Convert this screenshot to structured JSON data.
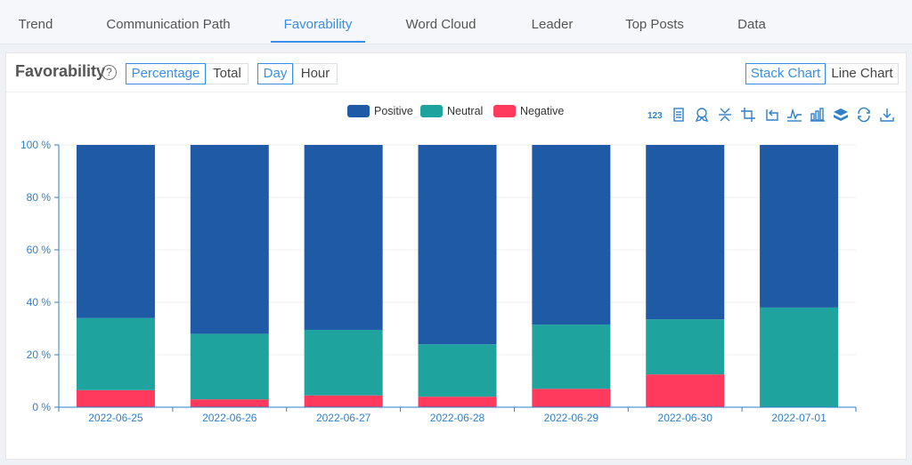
{
  "tabs": [
    {
      "label": "Trend",
      "active": false
    },
    {
      "label": "Communication Path",
      "active": false
    },
    {
      "label": "Favorability",
      "active": true
    },
    {
      "label": "Word Cloud",
      "active": false
    },
    {
      "label": "Leader",
      "active": false
    },
    {
      "label": "Top Posts",
      "active": false
    },
    {
      "label": "Data",
      "active": false
    }
  ],
  "panel": {
    "title": "Favorability",
    "help_icon": "question-circle-icon",
    "mode_buttons": [
      {
        "label": "Percentage",
        "active": true
      },
      {
        "label": "Total",
        "active": false
      }
    ],
    "granularity_buttons": [
      {
        "label": "Day",
        "active": true
      },
      {
        "label": "Hour",
        "active": false
      }
    ],
    "view_buttons": [
      {
        "label": "Stack Chart",
        "active": true
      },
      {
        "label": "Line Chart",
        "active": false
      }
    ]
  },
  "toolbox": [
    "data-labels-icon",
    "data-view-icon",
    "award-icon",
    "collapse-icon",
    "crop-icon",
    "rotate-icon",
    "line-chart-icon",
    "bar-chart-icon",
    "stack-icon",
    "refresh-icon",
    "download-icon"
  ],
  "colors": {
    "accent": "#3a8ee6",
    "positive": "#1f5aa6",
    "neutral": "#1fa39f",
    "negative": "#ff3a5c",
    "axis": "#2f7fc9"
  },
  "chart_data": {
    "type": "bar",
    "stacked": true,
    "categories": [
      "2022-06-25",
      "2022-06-26",
      "2022-06-27",
      "2022-06-28",
      "2022-06-29",
      "2022-06-30",
      "2022-07-01"
    ],
    "series": [
      {
        "name": "Negative",
        "color": "#ff3a5c",
        "values": [
          6.5,
          3,
          4.5,
          4,
          7,
          12.5,
          0
        ]
      },
      {
        "name": "Neutral",
        "color": "#1fa39f",
        "values": [
          27.5,
          25,
          25,
          20,
          24.5,
          21,
          38
        ]
      },
      {
        "name": "Positive",
        "color": "#1f5aa6",
        "values": [
          66,
          72,
          70.5,
          76,
          68.5,
          66.5,
          62
        ]
      }
    ],
    "legend": [
      "Positive",
      "Neutral",
      "Negative"
    ],
    "ylim": [
      0,
      100
    ],
    "yticks": [
      0,
      20,
      40,
      60,
      80,
      100
    ],
    "ytick_labels": [
      "0 %",
      "20 %",
      "40 %",
      "60 %",
      "80 %",
      "100 %"
    ],
    "grid": true,
    "legend_position": "top-center"
  }
}
